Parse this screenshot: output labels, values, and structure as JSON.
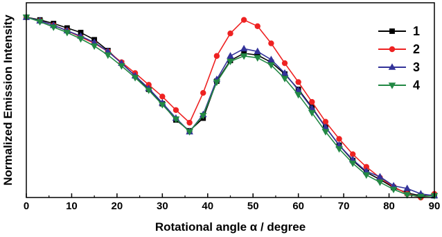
{
  "chart_data": {
    "type": "line",
    "xlabel": "Rotational angle α / degree",
    "ylabel": "Normalized Emission Intensity",
    "xlim": [
      0,
      90
    ],
    "ylim": [
      0,
      1.08
    ],
    "xticks": [
      0,
      10,
      20,
      30,
      40,
      50,
      60,
      70,
      80,
      90
    ],
    "xtick_labels": [
      "0",
      "10",
      "20",
      "30",
      "40",
      "50",
      "60",
      "70",
      "80",
      "90"
    ],
    "y_tick_labels_shown": false,
    "grid": false,
    "legend_position": "top-right",
    "x": [
      0,
      3,
      6,
      9,
      12,
      15,
      18,
      21,
      24,
      27,
      30,
      33,
      36,
      39,
      42,
      45,
      48,
      51,
      54,
      57,
      60,
      63,
      66,
      69,
      72,
      75,
      78,
      81,
      84,
      87,
      90
    ],
    "series": [
      {
        "name": "1",
        "color": "#000000",
        "marker": "square",
        "values": [
          1.0,
          0.985,
          0.965,
          0.94,
          0.915,
          0.875,
          0.815,
          0.745,
          0.675,
          0.6,
          0.52,
          0.43,
          0.37,
          0.44,
          0.645,
          0.76,
          0.8,
          0.79,
          0.75,
          0.685,
          0.6,
          0.5,
          0.39,
          0.29,
          0.205,
          0.14,
          0.1,
          0.055,
          0.025,
          0.01,
          0.01
        ]
      },
      {
        "name": "2",
        "color": "#ee2222",
        "marker": "circle",
        "values": [
          1.0,
          0.98,
          0.955,
          0.925,
          0.89,
          0.855,
          0.81,
          0.75,
          0.69,
          0.625,
          0.56,
          0.485,
          0.415,
          0.58,
          0.785,
          0.91,
          0.985,
          0.95,
          0.855,
          0.745,
          0.64,
          0.53,
          0.42,
          0.325,
          0.24,
          0.17,
          0.11,
          0.06,
          0.02,
          0.0,
          0.02
        ]
      },
      {
        "name": "3",
        "color": "#333399",
        "marker": "triangle-up",
        "values": [
          1.0,
          0.98,
          0.955,
          0.925,
          0.895,
          0.86,
          0.81,
          0.745,
          0.675,
          0.605,
          0.525,
          0.44,
          0.365,
          0.46,
          0.655,
          0.785,
          0.825,
          0.81,
          0.765,
          0.69,
          0.595,
          0.495,
          0.39,
          0.29,
          0.21,
          0.145,
          0.115,
          0.065,
          0.05,
          0.02,
          0.01
        ]
      },
      {
        "name": "4",
        "color": "#228844",
        "marker": "triangle-down",
        "values": [
          1.0,
          0.975,
          0.945,
          0.915,
          0.88,
          0.84,
          0.79,
          0.73,
          0.665,
          0.595,
          0.515,
          0.435,
          0.365,
          0.455,
          0.64,
          0.755,
          0.785,
          0.775,
          0.735,
          0.66,
          0.57,
          0.47,
          0.365,
          0.27,
          0.19,
          0.125,
          0.085,
          0.045,
          0.015,
          0.005,
          0.01
        ]
      }
    ]
  }
}
